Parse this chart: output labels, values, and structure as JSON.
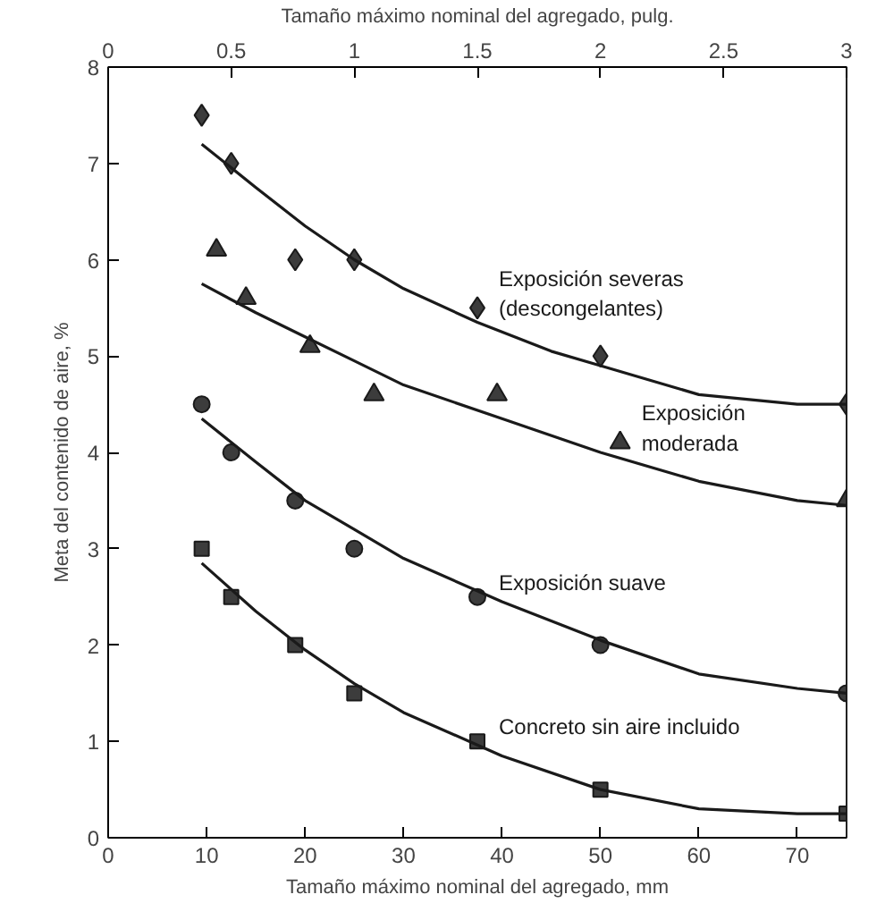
{
  "chart_data": {
    "type": "scatter",
    "xlabel": "Tamaño máximo nominal del agregado, mm",
    "ylabel": "Meta del contenido de aire, %",
    "x2label": "Tamaño máximo nominal del agregado, pulg.",
    "xlim": [
      0,
      75
    ],
    "xticks": [
      0,
      10,
      20,
      30,
      40,
      50,
      60,
      70
    ],
    "ylim": [
      0,
      8
    ],
    "yticks": [
      0,
      1,
      2,
      3,
      4,
      5,
      6,
      7,
      8
    ],
    "x2lim": [
      0,
      3
    ],
    "x2ticks": [
      0,
      0.5,
      1,
      1.5,
      2,
      2.5,
      3
    ],
    "grid": false,
    "series": [
      {
        "name": "Exposición severas\n(descongelantes)",
        "marker": "diamond",
        "color": "#1a1a1a",
        "x": [
          9.5,
          12.5,
          19,
          25,
          37.5,
          50,
          75
        ],
        "values": [
          7.5,
          7,
          6,
          6,
          5.5,
          5,
          4.5
        ]
      },
      {
        "type": "line",
        "marker": "none",
        "line_style": "solid",
        "color": "#1a1a1a",
        "x": [
          9.5,
          15,
          20,
          25,
          30,
          37.5,
          45,
          50,
          60,
          70,
          75
        ],
        "values": [
          7.2,
          6.75,
          6.35,
          6.0,
          5.7,
          5.35,
          5.05,
          4.9,
          4.6,
          4.5,
          4.5
        ]
      },
      {
        "name": "Exposición\nmoderada",
        "marker": "triangle",
        "color": "#1a1a1a",
        "x": [
          11,
          14,
          20.5,
          27,
          39.5,
          52,
          75
        ],
        "values": [
          6.1,
          5.6,
          5.1,
          4.6,
          4.6,
          4.1,
          3.5
        ]
      },
      {
        "type": "line",
        "marker": "none",
        "line_style": "solid",
        "color": "#1a1a1a",
        "x": [
          9.5,
          15,
          20,
          25,
          30,
          40,
          50,
          60,
          70,
          75
        ],
        "values": [
          5.75,
          5.45,
          5.2,
          4.95,
          4.7,
          4.35,
          4.0,
          3.7,
          3.5,
          3.45
        ]
      },
      {
        "name": "Exposición suave",
        "marker": "circle",
        "color": "#1a1a1a",
        "x": [
          9.5,
          12.5,
          19,
          25,
          37.5,
          50,
          75
        ],
        "values": [
          4.5,
          4,
          3.5,
          3,
          2.5,
          2,
          1.5
        ]
      },
      {
        "type": "line",
        "marker": "none",
        "line_style": "solid",
        "color": "#1a1a1a",
        "x": [
          9.5,
          15,
          20,
          25,
          30,
          40,
          50,
          60,
          70,
          75
        ],
        "values": [
          4.35,
          3.9,
          3.5,
          3.2,
          2.9,
          2.45,
          2.05,
          1.7,
          1.55,
          1.5
        ]
      },
      {
        "name": "Concreto sin aire incluido",
        "marker": "square",
        "color": "#1a1a1a",
        "x": [
          9.5,
          12.5,
          19,
          25,
          37.5,
          50,
          75
        ],
        "values": [
          3,
          2.5,
          2,
          1.5,
          1,
          0.5,
          0.25
        ]
      },
      {
        "type": "line",
        "marker": "none",
        "line_style": "solid",
        "color": "#1a1a1a",
        "x": [
          9.5,
          15,
          20,
          25,
          30,
          40,
          50,
          60,
          70,
          75
        ],
        "values": [
          2.85,
          2.35,
          1.95,
          1.6,
          1.3,
          0.85,
          0.5,
          0.3,
          0.25,
          0.25
        ]
      }
    ]
  }
}
